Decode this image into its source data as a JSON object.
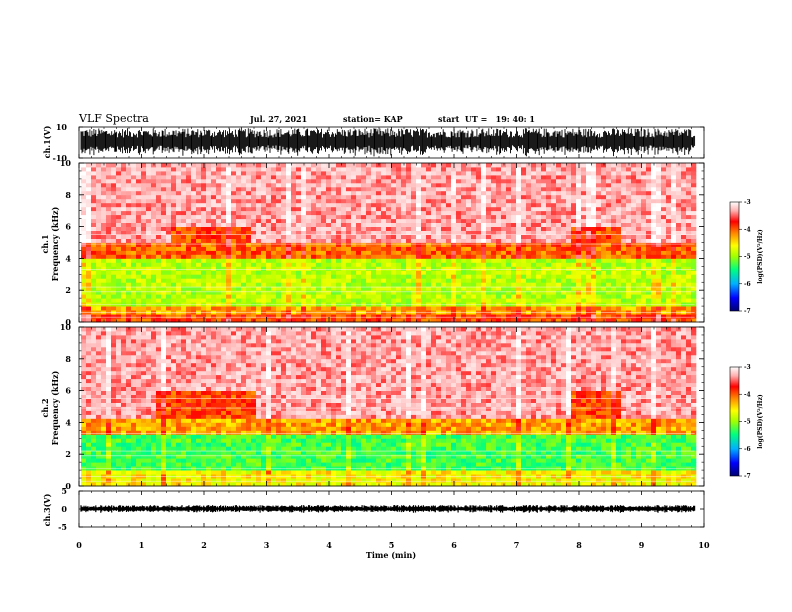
{
  "header": {
    "title": "VLF Spectra",
    "date": "Jul. 27, 2021",
    "station": "station= KAP",
    "start": "start  UT =   19: 40: 1"
  },
  "colorbar": {
    "label": "log(PSD)(V²/Hz)",
    "ticks": [
      "-3",
      "-4",
      "-5",
      "-6",
      "-7"
    ],
    "range": [
      -7,
      -3
    ],
    "colors": [
      "#000080",
      "#0000ff",
      "#00c0ff",
      "#00ff80",
      "#80ff00",
      "#ffff00",
      "#ff8000",
      "#ff0000",
      "#ffd0d0",
      "#ffffff"
    ]
  },
  "chart_data": [
    {
      "type": "line",
      "name": "ch1-waveform",
      "ylabel": "ch.1(V)",
      "ylim": [
        -10,
        10
      ],
      "yticks": [
        "10",
        "-10"
      ],
      "xlim": [
        0,
        10
      ],
      "color": "#000000"
    },
    {
      "type": "heatmap",
      "name": "ch1-spectrogram",
      "ylabel_top": "ch.1",
      "ylabel": "Frequency (kHz)",
      "xlim": [
        0,
        10
      ],
      "ylim": [
        0,
        10
      ],
      "yticks": [
        "0",
        "2",
        "4",
        "6",
        "8",
        "10"
      ],
      "bands": [
        {
          "from": 0,
          "to": 0.5,
          "log_psd": -4.0
        },
        {
          "from": 0.5,
          "to": 1.0,
          "log_psd": -4.3
        },
        {
          "from": 1.0,
          "to": 4.0,
          "log_psd": -4.9
        },
        {
          "from": 4.0,
          "to": 5.0,
          "log_psd": -4.1
        },
        {
          "from": 5.0,
          "to": 10.0,
          "log_psd": -3.4
        }
      ],
      "events_min": [
        {
          "x": [
            1.4,
            2.7
          ],
          "note": "enhanced emission 4–5.6 kHz"
        },
        {
          "x": [
            7.8,
            8.6
          ],
          "note": "enhanced emission 4–5.6 kHz"
        }
      ]
    },
    {
      "type": "heatmap",
      "name": "ch2-spectrogram",
      "ylabel_top": "ch.2",
      "ylabel": "Frequency (kHz)",
      "xlim": [
        0,
        10
      ],
      "ylim": [
        0,
        10
      ],
      "yticks": [
        "0",
        "2",
        "4",
        "6",
        "8",
        "10"
      ],
      "bands": [
        {
          "from": 0,
          "to": 1.0,
          "log_psd": -4.6
        },
        {
          "from": 1.0,
          "to": 3.2,
          "log_psd": -5.3
        },
        {
          "from": 3.2,
          "to": 4.2,
          "log_psd": -4.3
        },
        {
          "from": 4.2,
          "to": 10.0,
          "log_psd": -3.4
        }
      ],
      "events_min": [
        {
          "x": [
            1.2,
            2.8
          ],
          "note": "enhanced emission 4–6 kHz"
        },
        {
          "x": [
            7.8,
            8.6
          ],
          "note": "enhanced emission 4–6 kHz"
        }
      ]
    },
    {
      "type": "line",
      "name": "ch3-waveform",
      "ylabel": "ch.3(V)",
      "ylim": [
        -5,
        5
      ],
      "yticks": [
        "5",
        "0",
        "-5"
      ],
      "xlim": [
        0,
        10
      ],
      "color": "#000000"
    }
  ],
  "xaxis": {
    "label": "Time (min)",
    "ticks": [
      "0",
      "1",
      "2",
      "3",
      "4",
      "5",
      "6",
      "7",
      "8",
      "9",
      "10"
    ],
    "data_end_min": 9.85
  }
}
